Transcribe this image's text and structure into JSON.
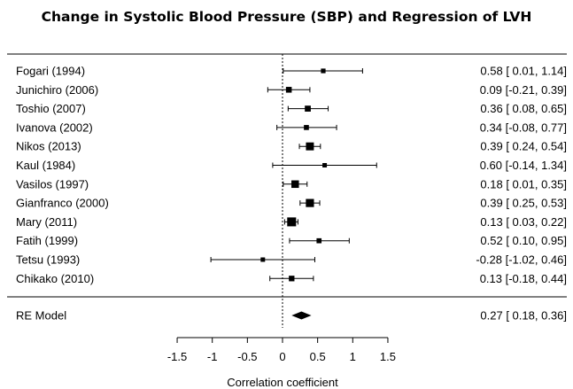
{
  "chart_data": {
    "type": "forest",
    "title": "Change in Systolic Blood Pressure (SBP) and Regression of LVH",
    "xlabel": "Correlation coefficient",
    "xlim": [
      -1.5,
      1.5
    ],
    "xticks": [
      "-1.5",
      "-1",
      "-0.5",
      "0",
      "0.5",
      "1",
      "1.5"
    ],
    "xtick_values": [
      -1.5,
      -1,
      -0.5,
      0,
      0.5,
      1,
      1.5
    ],
    "reference_line": 0,
    "studies": [
      {
        "label": "Fogari (1994)",
        "estimate": 0.58,
        "lower": 0.01,
        "upper": 1.14,
        "weight": 1,
        "ci_text": "0.58 [ 0.01, 1.14]"
      },
      {
        "label": "Junichiro (2006)",
        "estimate": 0.09,
        "lower": -0.21,
        "upper": 0.39,
        "weight": 1.6,
        "ci_text": "0.09 [-0.21, 0.39]"
      },
      {
        "label": "Toshio (2007)",
        "estimate": 0.36,
        "lower": 0.08,
        "upper": 0.65,
        "weight": 1.7,
        "ci_text": "0.36 [ 0.08, 0.65]"
      },
      {
        "label": "Ivanova (2002)",
        "estimate": 0.34,
        "lower": -0.08,
        "upper": 0.77,
        "weight": 1.2,
        "ci_text": "0.34 [-0.08, 0.77]"
      },
      {
        "label": "Nikos (2013)",
        "estimate": 0.39,
        "lower": 0.24,
        "upper": 0.54,
        "weight": 2.7,
        "ci_text": "0.39 [ 0.24, 0.54]"
      },
      {
        "label": "Kaul (1984)",
        "estimate": 0.6,
        "lower": -0.14,
        "upper": 1.34,
        "weight": 0.9,
        "ci_text": "0.60 [-0.14, 1.34]"
      },
      {
        "label": "Vasilos (1997)",
        "estimate": 0.18,
        "lower": 0.01,
        "upper": 0.35,
        "weight": 2.5,
        "ci_text": "0.18 [ 0.01, 0.35]"
      },
      {
        "label": "Gianfranco (2000)",
        "estimate": 0.39,
        "lower": 0.25,
        "upper": 0.53,
        "weight": 2.8,
        "ci_text": "0.39 [ 0.25, 0.53]"
      },
      {
        "label": "Mary (2011)",
        "estimate": 0.13,
        "lower": 0.03,
        "upper": 0.22,
        "weight": 3.2,
        "ci_text": "0.13 [ 0.03, 0.22]"
      },
      {
        "label": "Fatih (1999)",
        "estimate": 0.52,
        "lower": 0.1,
        "upper": 0.95,
        "weight": 1.2,
        "ci_text": "0.52 [ 0.10, 0.95]"
      },
      {
        "label": "Tetsu (1993)",
        "estimate": -0.28,
        "lower": -1.02,
        "upper": 0.46,
        "weight": 0.9,
        "ci_text": "-0.28 [-1.02, 0.46]"
      },
      {
        "label": "Chikako (2010)",
        "estimate": 0.13,
        "lower": -0.18,
        "upper": 0.44,
        "weight": 1.5,
        "ci_text": "0.13 [-0.18, 0.44]"
      }
    ],
    "summary": {
      "label": "RE Model",
      "estimate": 0.27,
      "lower": 0.18,
      "upper": 0.36,
      "ci_text": "0.27 [ 0.18, 0.36]"
    }
  }
}
